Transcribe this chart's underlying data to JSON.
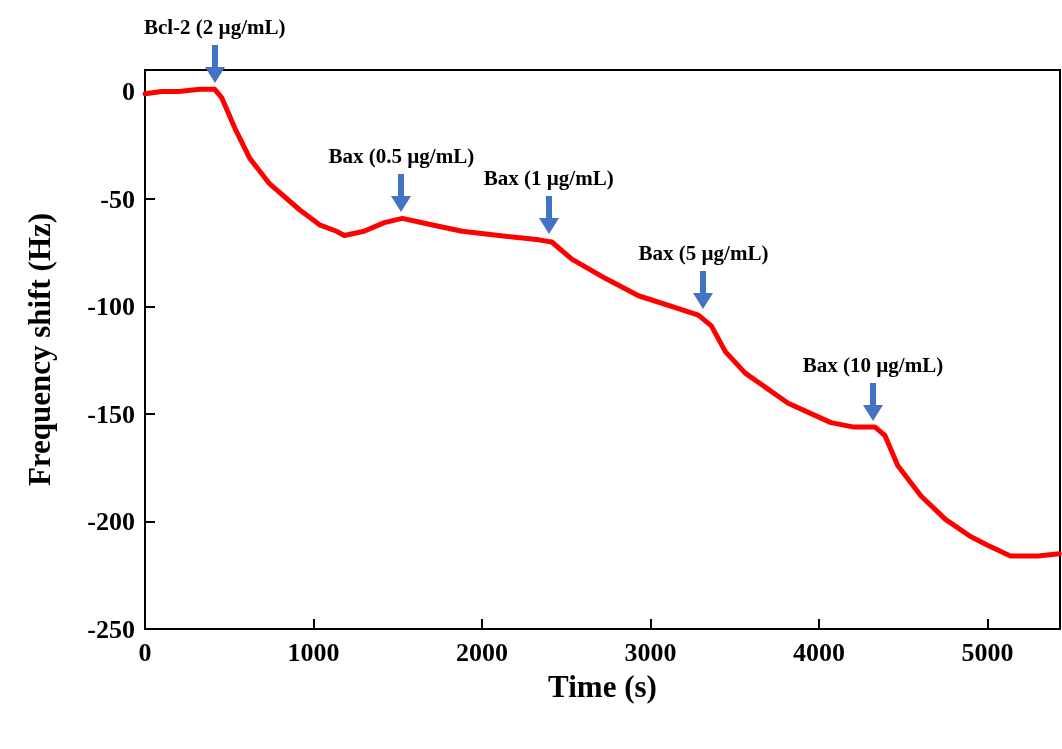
{
  "chart_data": {
    "type": "line",
    "xlabel": "Time (s)",
    "ylabel": "Frequency shift (Hz)",
    "xlim": [
      0,
      5430
    ],
    "xticks": [
      0,
      1000,
      2000,
      3000,
      4000,
      5000
    ],
    "ylim": [
      -250,
      10
    ],
    "yticks": [
      -250,
      -200,
      -150,
      -100,
      -50,
      0
    ],
    "grid": false,
    "marker": "none",
    "line_style": "solid",
    "series": [
      {
        "color": "#ff0000",
        "x": [
          0,
          100,
          200,
          325,
          414,
          456,
          533,
          621,
          740,
          917,
          1036,
          1136,
          1183,
          1300,
          1420,
          1527,
          1700,
          1882,
          2100,
          2337,
          2414,
          2533,
          2734,
          2929,
          3166,
          3284,
          3361,
          3444,
          3562,
          3817,
          4071,
          4200,
          4331,
          4391,
          4467,
          4604,
          4750,
          4899,
          5000,
          5136,
          5300,
          5426
        ],
        "values": [
          -1,
          0,
          0,
          1,
          1,
          -3,
          -17,
          -31,
          -43,
          -55,
          -62,
          -65,
          -67,
          -65,
          -61,
          -59,
          -62,
          -65,
          -67,
          -69,
          -70,
          -78,
          -87,
          -95,
          -101,
          -104,
          -109,
          -121,
          -131,
          -145,
          -154,
          -156,
          -156,
          -160,
          -174,
          -188,
          -199,
          -207,
          -211,
          -216,
          -216,
          -215
        ]
      }
    ],
    "annotations": [
      {
        "text": "Bcl-2 (2 µg/mL)",
        "x": 414,
        "y": 1
      },
      {
        "text": "Bax (0.5 µg/mL)",
        "x": 1521,
        "y": -59
      },
      {
        "text": "Bax (1 µg/mL)",
        "x": 2396,
        "y": -69
      },
      {
        "text": "Bax (5 µg/mL)",
        "x": 3314,
        "y": -104
      },
      {
        "text": "Bax (10 µg/mL)",
        "x": 4320,
        "y": -156
      }
    ]
  }
}
